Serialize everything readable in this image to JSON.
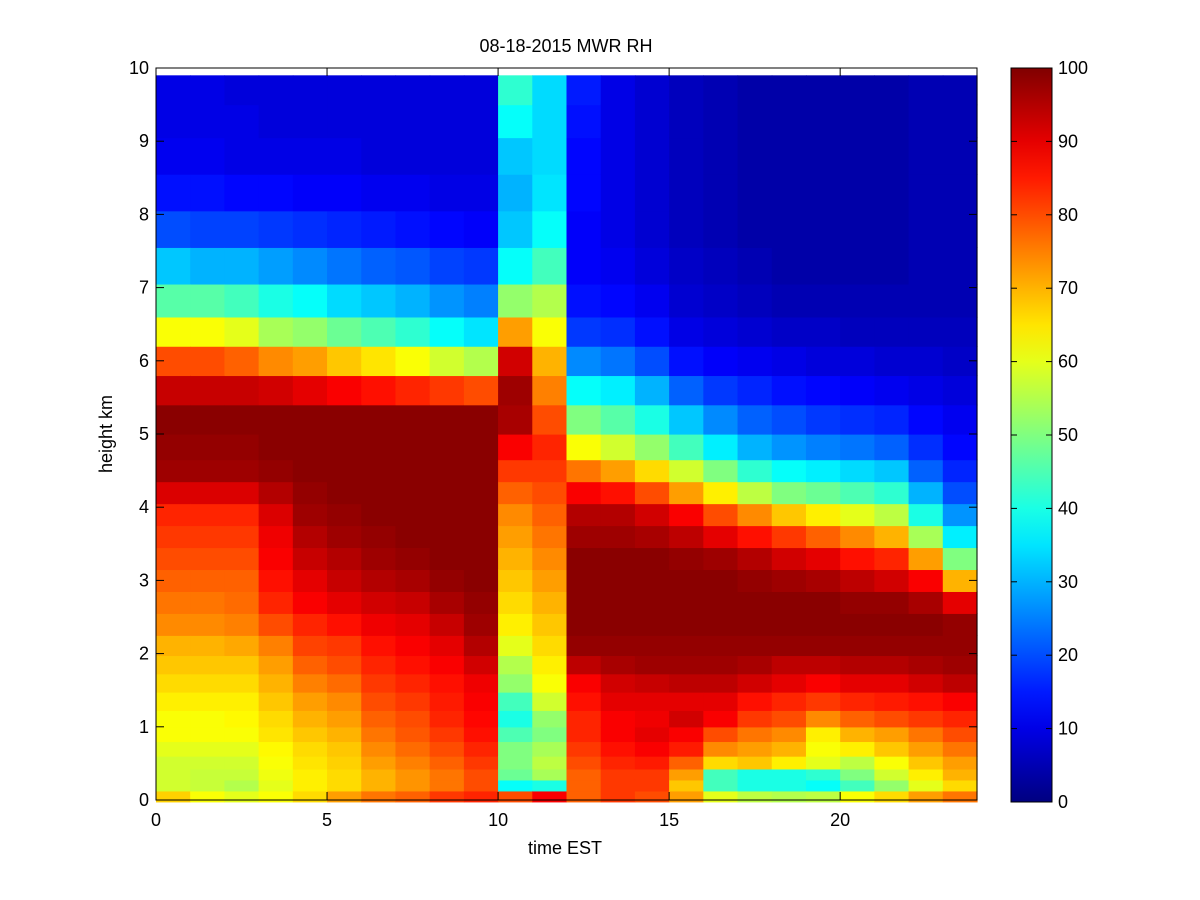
{
  "chart_data": {
    "type": "heatmap",
    "title": "08-18-2015 MWR RH",
    "xlabel": "time EST",
    "ylabel": "height km",
    "xlim": [
      0,
      24
    ],
    "ylim": [
      0,
      10
    ],
    "x_ticks": [
      "0",
      "5",
      "10",
      "15",
      "20"
    ],
    "y_ticks": [
      "0",
      "1",
      "2",
      "3",
      "4",
      "5",
      "6",
      "7",
      "8",
      "9",
      "10"
    ],
    "colorbar": {
      "colormap": "jet",
      "range": [
        0,
        100
      ],
      "ticks": [
        "0",
        "10",
        "20",
        "30",
        "40",
        "50",
        "60",
        "70",
        "80",
        "90",
        "100"
      ]
    },
    "x": [
      0.5,
      1.5,
      2.5,
      3.5,
      4.5,
      5.5,
      6.5,
      7.5,
      8.5,
      9.5,
      10.5,
      11.5,
      12.5,
      13.5,
      14.5,
      15.5,
      16.5,
      17.5,
      18.5,
      19.5,
      20.5,
      21.5,
      22.5,
      23.5
    ],
    "y": [
      0.05,
      0.2,
      0.35,
      0.5,
      0.7,
      0.9,
      1.1,
      1.35,
      1.6,
      1.85,
      2.1,
      2.4,
      2.7,
      3.0,
      3.3,
      3.6,
      3.9,
      4.2,
      4.5,
      4.8,
      5.2,
      5.6,
      6.0,
      6.4,
      6.8,
      7.3,
      7.8,
      8.3,
      8.8,
      9.3,
      9.7
    ],
    "values": [
      [
        67,
        58,
        58,
        58,
        60,
        62,
        62,
        64,
        66,
        68,
        70,
        74,
        76,
        78,
        80,
        82,
        84,
        91,
        97,
        98,
        99,
        93,
        80,
        62,
        46,
        32,
        20,
        14,
        11,
        10,
        10
      ],
      [
        62,
        57,
        57,
        58,
        60,
        62,
        62,
        64,
        66,
        68,
        70,
        74,
        76,
        78,
        80,
        82,
        84,
        91,
        97,
        98,
        99,
        93,
        80,
        62,
        46,
        30,
        19,
        14,
        11,
        10,
        10
      ],
      [
        60,
        55,
        57,
        58,
        60,
        62,
        63,
        64,
        66,
        68,
        71,
        75,
        77,
        78,
        80,
        82,
        84,
        91,
        97,
        98,
        99,
        93,
        78,
        60,
        44,
        30,
        19,
        13,
        10,
        10,
        9
      ],
      [
        62,
        60,
        61,
        62,
        63,
        65,
        66,
        68,
        70,
        72,
        75,
        80,
        84,
        86,
        88,
        89,
        91,
        95,
        98,
        99,
        99,
        92,
        74,
        54,
        40,
        28,
        18,
        13,
        10,
        9,
        9
      ],
      [
        66,
        64,
        64,
        65,
        66,
        68,
        70,
        72,
        75,
        78,
        81,
        84,
        88,
        90,
        93,
        95,
        97,
        98,
        99,
        99,
        99,
        90,
        72,
        52,
        38,
        26,
        17,
        12,
        10,
        9,
        9
      ],
      [
        72,
        66,
        66,
        67,
        68,
        70,
        72,
        74,
        77,
        80,
        82,
        86,
        90,
        93,
        95,
        97,
        98,
        99,
        99,
        99,
        99,
        88,
        68,
        48,
        34,
        24,
        16,
        12,
        10,
        9,
        9
      ],
      [
        76,
        70,
        70,
        72,
        74,
        76,
        78,
        80,
        82,
        84,
        86,
        89,
        92,
        95,
        97,
        98,
        99,
        99,
        99,
        99,
        99,
        86,
        65,
        45,
        32,
        22,
        15,
        11,
        9,
        9,
        9
      ],
      [
        78,
        73,
        73,
        75,
        77,
        79,
        80,
        82,
        84,
        86,
        88,
        90,
        93,
        96,
        98,
        99,
        99,
        99,
        99,
        99,
        99,
        84,
        62,
        42,
        30,
        21,
        14,
        11,
        9,
        9,
        9
      ],
      [
        82,
        76,
        76,
        78,
        80,
        82,
        84,
        85,
        86,
        88,
        90,
        93,
        96,
        98,
        99,
        99,
        99,
        99,
        99,
        99,
        99,
        82,
        58,
        38,
        27,
        19,
        13,
        10,
        9,
        9,
        9
      ],
      [
        84,
        80,
        80,
        82,
        84,
        86,
        87,
        88,
        89,
        92,
        95,
        97,
        98,
        99,
        99,
        99,
        99,
        99,
        99,
        99,
        99,
        80,
        55,
        35,
        25,
        18,
        12,
        10,
        9,
        9,
        9
      ],
      [
        80,
        38,
        48,
        50,
        50,
        45,
        40,
        44,
        52,
        55,
        60,
        64,
        66,
        68,
        70,
        72,
        74,
        78,
        82,
        88,
        96,
        97,
        92,
        72,
        52,
        38,
        32,
        30,
        32,
        38,
        42
      ],
      [
        88,
        40,
        54,
        56,
        54,
        50,
        52,
        58,
        62,
        64,
        66,
        68,
        70,
        72,
        74,
        76,
        78,
        80,
        82,
        84,
        80,
        75,
        70,
        62,
        55,
        44,
        38,
        35,
        34,
        34,
        34
      ],
      [
        78,
        78,
        78,
        80,
        82,
        84,
        84,
        86,
        88,
        94,
        98,
        99,
        99,
        99,
        99,
        97,
        95,
        88,
        76,
        62,
        50,
        38,
        26,
        18,
        14,
        12,
        12,
        13,
        13,
        14,
        15
      ],
      [
        82,
        82,
        82,
        84,
        86,
        88,
        88,
        90,
        92,
        96,
        98,
        99,
        99,
        99,
        99,
        97,
        95,
        86,
        72,
        58,
        46,
        36,
        24,
        17,
        13,
        11,
        10,
        10,
        10,
        10,
        10
      ],
      [
        80,
        82,
        82,
        85,
        88,
        90,
        89,
        90,
        93,
        97,
        98,
        99,
        99,
        99,
        99,
        96,
        92,
        80,
        66,
        52,
        40,
        30,
        20,
        14,
        11,
        9,
        8,
        8,
        8,
        8,
        8
      ],
      [
        72,
        68,
        72,
        78,
        85,
        88,
        92,
        90,
        94,
        97,
        98,
        99,
        99,
        99,
        98,
        94,
        88,
        72,
        58,
        44,
        32,
        22,
        14,
        10,
        8,
        7,
        6,
        6,
        6,
        6,
        6
      ],
      [
        60,
        44,
        44,
        66,
        74,
        80,
        88,
        90,
        94,
        97,
        98,
        99,
        99,
        99,
        97,
        90,
        80,
        64,
        50,
        36,
        26,
        18,
        12,
        9,
        7,
        6,
        5,
        5,
        5,
        5,
        5
      ],
      [
        56,
        40,
        40,
        68,
        72,
        76,
        82,
        86,
        92,
        96,
        98,
        99,
        99,
        98,
        95,
        86,
        74,
        56,
        42,
        30,
        22,
        16,
        11,
        8,
        6,
        5,
        4,
        4,
        4,
        4,
        4
      ],
      [
        55,
        40,
        40,
        64,
        70,
        74,
        80,
        84,
        90,
        94,
        98,
        99,
        99,
        97,
        92,
        82,
        68,
        50,
        38,
        27,
        20,
        14,
        10,
        7,
        5,
        4,
        4,
        4,
        4,
        4,
        4
      ],
      [
        56,
        38,
        42,
        60,
        62,
        64,
        74,
        82,
        88,
        94,
        98,
        99,
        99,
        96,
        90,
        78,
        64,
        48,
        36,
        25,
        18,
        13,
        9,
        7,
        5,
        4,
        4,
        4,
        4,
        4,
        4
      ],
      [
        62,
        44,
        50,
        56,
        64,
        70,
        78,
        84,
        90,
        95,
        98,
        99,
        98,
        94,
        86,
        74,
        60,
        45,
        34,
        24,
        17,
        12,
        9,
        6,
        5,
        4,
        4,
        4,
        4,
        4,
        4
      ],
      [
        66,
        52,
        58,
        62,
        68,
        72,
        80,
        85,
        90,
        95,
        98,
        99,
        98,
        92,
        84,
        70,
        56,
        42,
        32,
        22,
        16,
        11,
        8,
        6,
        5,
        4,
        4,
        4,
        4,
        4,
        4
      ],
      [
        72,
        60,
        64,
        68,
        72,
        76,
        82,
        86,
        92,
        96,
        98,
        99,
        96,
        88,
        72,
        54,
        40,
        30,
        22,
        17,
        13,
        10,
        8,
        6,
        5,
        5,
        5,
        5,
        5,
        5,
        5
      ],
      [
        76,
        66,
        70,
        72,
        76,
        80,
        84,
        88,
        94,
        97,
        98,
        98,
        90,
        70,
        50,
        36,
        27,
        20,
        16,
        13,
        11,
        9,
        7,
        6,
        5,
        5,
        5,
        5,
        5,
        5,
        5
      ]
    ]
  }
}
